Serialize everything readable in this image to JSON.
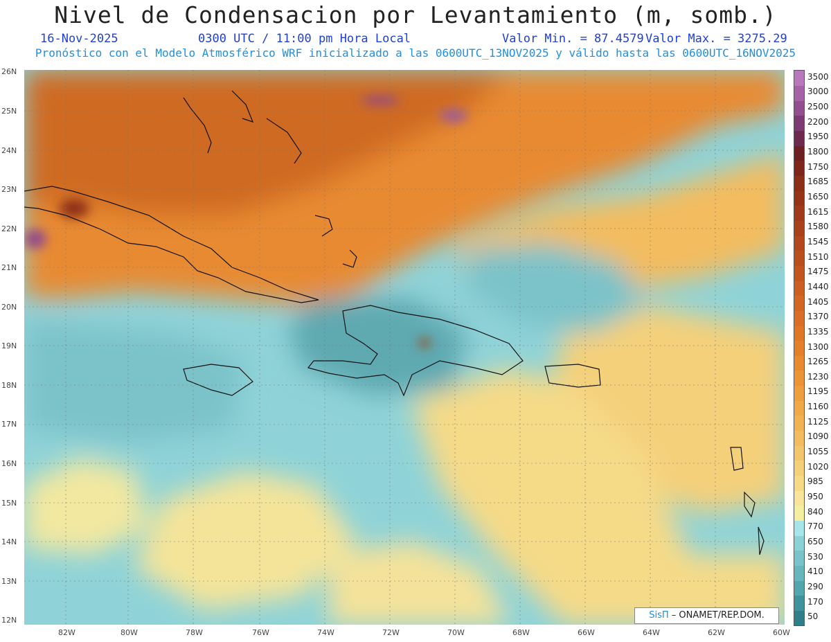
{
  "title": "Nivel de Condensacion por Levantamiento (m, somb.)",
  "date": "16-Nov-2025",
  "time": "0300 UTC / 11:00 pm Hora Local",
  "min_label": "Valor Min. = 87.4579",
  "max_label": "Valor Max. = 3275.29",
  "forecast_line": "Pronóstico con el Modelo Atmosférico WRF inicializado a las 0600UTC_13NOV2025 y válido hasta las  0600UTC_16NOV2025",
  "credit": {
    "brand": "SisΠ",
    "text": "– ONAMET/REP.DOM."
  },
  "map": {
    "lat_labels": [
      "26N",
      "25N",
      "24N",
      "23N",
      "22N",
      "21N",
      "20N",
      "19N",
      "18N",
      "17N",
      "16N",
      "15N",
      "14N",
      "13N",
      "12N"
    ],
    "lon_labels": [
      "82W",
      "80W",
      "78W",
      "76W",
      "74W",
      "72W",
      "70W",
      "68W",
      "66W",
      "64W",
      "62W",
      "60W"
    ],
    "lat_range": [
      12,
      26
    ],
    "lon_range": [
      -83.2,
      -60
    ]
  },
  "colorbar": {
    "levels": [
      "50",
      "170",
      "290",
      "410",
      "530",
      "650",
      "770",
      "840",
      "950",
      "985",
      "1020",
      "1055",
      "1090",
      "1125",
      "1160",
      "1195",
      "1230",
      "1265",
      "1300",
      "1335",
      "1370",
      "1405",
      "1440",
      "1475",
      "1510",
      "1545",
      "1580",
      "1615",
      "1650",
      "1685",
      "1750",
      "1800",
      "1950",
      "2200",
      "2500",
      "3000",
      "3500"
    ],
    "colors": [
      "#2e7f8a",
      "#3f939c",
      "#52a6ae",
      "#66b6bd",
      "#78c4ca",
      "#8ad2d6",
      "#a6e6ea",
      "#f4ee9e",
      "#f8e59a",
      "#f6da86",
      "#f5d07a",
      "#f4c66c",
      "#f3bc5e",
      "#f2b252",
      "#f1a846",
      "#ef9e3c",
      "#ec9434",
      "#e98a2e",
      "#e4802a",
      "#df7726",
      "#d96e24",
      "#d26622",
      "#cb5e20",
      "#c3561e",
      "#bb4f1c",
      "#b2481b",
      "#a9411a",
      "#a03a19",
      "#973418",
      "#8d2e19",
      "#7e261c",
      "#6d1f22",
      "#6e2a4e",
      "#7e3a72",
      "#924e8e",
      "#a662a6",
      "#b878bb"
    ]
  },
  "icons": {
    "brand": "sispi-logo"
  }
}
